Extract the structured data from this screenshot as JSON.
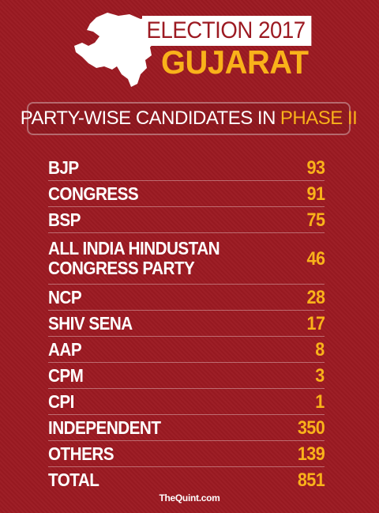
{
  "header": {
    "title_line1": "ELECTION 2017",
    "title_line2": "GUJARAT",
    "subtitle_main": "PARTY-WISE CANDIDATES IN",
    "subtitle_highlight": "PHASE II",
    "map_icon": "gujarat-map-icon"
  },
  "colors": {
    "background": "#9c1a22",
    "accent": "#f9b21a",
    "text": "#ffffff"
  },
  "chart_data": {
    "type": "table",
    "title": "PARTY-WISE CANDIDATES IN PHASE II",
    "rows": [
      {
        "party": "BJP",
        "candidates": 93
      },
      {
        "party": "CONGRESS",
        "candidates": 91
      },
      {
        "party": "BSP",
        "candidates": 75
      },
      {
        "party": "ALL INDIA HINDUSTAN\nCONGRESS PARTY",
        "candidates": 46
      },
      {
        "party": "NCP",
        "candidates": 28
      },
      {
        "party": "SHIV SENA",
        "candidates": 17
      },
      {
        "party": "AAP",
        "candidates": 8
      },
      {
        "party": "CPM",
        "candidates": 3
      },
      {
        "party": "CPI",
        "candidates": 1
      },
      {
        "party": "INDEPENDENT",
        "candidates": 350
      },
      {
        "party": "OTHERS",
        "candidates": 139
      },
      {
        "party": "TOTAL",
        "candidates": 851
      }
    ]
  },
  "footer": {
    "source": "TheQuint.com"
  }
}
